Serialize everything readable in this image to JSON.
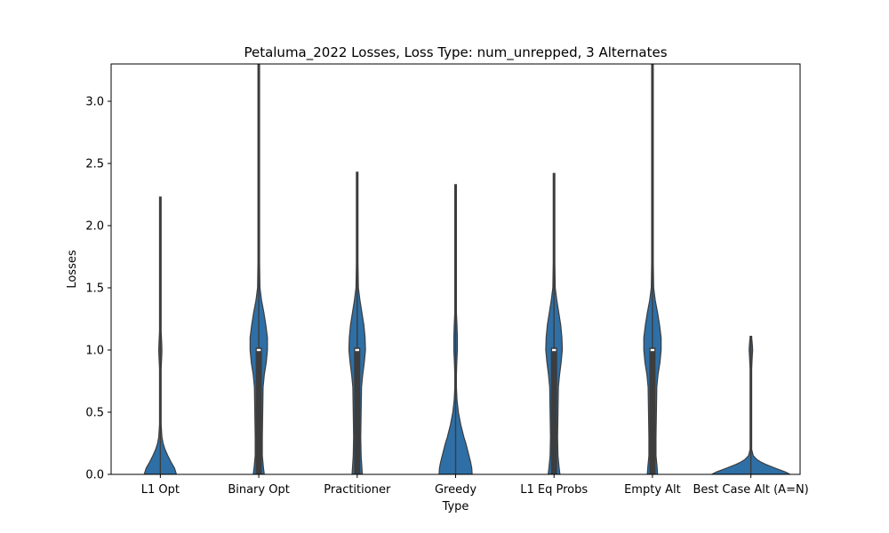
{
  "chart_data": {
    "type": "violin",
    "title": "Petaluma_2022 Losses, Loss Type: num_unrepped, 3 Alternates",
    "xlabel": "Type",
    "ylabel": "Losses",
    "ylim": [
      0,
      3.3
    ],
    "yticks": [
      "0.0",
      "0.5",
      "1.0",
      "1.5",
      "2.0",
      "2.5",
      "3.0"
    ],
    "grid": false,
    "legend": "none",
    "colors": {
      "fill": "#2e6fa6",
      "edge": "#3d3d3d",
      "inner": "#3d3d3d",
      "median": "#ffffff"
    },
    "categories": [
      "L1 Opt",
      "Binary Opt",
      "Practitioner",
      "Greedy",
      "L1 Eq Probs",
      "Empty Alt",
      "Best Case Alt (A=N)"
    ],
    "series": [
      {
        "category": "L1 Opt",
        "min": 0,
        "max": 2.23,
        "median": null,
        "profile": [
          [
            0,
            0.41
          ],
          [
            0.05,
            0.36
          ],
          [
            0.1,
            0.27
          ],
          [
            0.15,
            0.19
          ],
          [
            0.2,
            0.12
          ],
          [
            0.25,
            0.07
          ],
          [
            0.3,
            0.04
          ],
          [
            0.4,
            0.015
          ],
          [
            0.5,
            0.008
          ],
          [
            0.7,
            0.006
          ],
          [
            0.85,
            0.01
          ],
          [
            0.95,
            0.035
          ],
          [
            1.0,
            0.04
          ],
          [
            1.05,
            0.035
          ],
          [
            1.15,
            0.012
          ],
          [
            1.3,
            0.006
          ],
          [
            1.6,
            0.004
          ],
          [
            2.0,
            0.004
          ],
          [
            2.23,
            0.004
          ]
        ]
      },
      {
        "category": "Binary Opt",
        "min": 0,
        "max": 3.3,
        "median": 1.0,
        "profile": [
          [
            0,
            0.14
          ],
          [
            0.05,
            0.12
          ],
          [
            0.15,
            0.09
          ],
          [
            0.3,
            0.09
          ],
          [
            0.5,
            0.1
          ],
          [
            0.7,
            0.11
          ],
          [
            0.8,
            0.14
          ],
          [
            0.9,
            0.19
          ],
          [
            1.0,
            0.22
          ],
          [
            1.1,
            0.22
          ],
          [
            1.2,
            0.18
          ],
          [
            1.3,
            0.13
          ],
          [
            1.4,
            0.07
          ],
          [
            1.5,
            0.03
          ],
          [
            1.7,
            0.015
          ],
          [
            2.0,
            0.008
          ],
          [
            2.5,
            0.006
          ],
          [
            3.3,
            0.006
          ]
        ]
      },
      {
        "category": "Practitioner",
        "min": 0,
        "max": 2.43,
        "median": 1.0,
        "profile": [
          [
            0,
            0.13
          ],
          [
            0.05,
            0.12
          ],
          [
            0.15,
            0.1
          ],
          [
            0.3,
            0.09
          ],
          [
            0.5,
            0.1
          ],
          [
            0.7,
            0.11
          ],
          [
            0.8,
            0.14
          ],
          [
            0.9,
            0.18
          ],
          [
            1.0,
            0.21
          ],
          [
            1.1,
            0.2
          ],
          [
            1.2,
            0.17
          ],
          [
            1.3,
            0.12
          ],
          [
            1.4,
            0.07
          ],
          [
            1.5,
            0.03
          ],
          [
            1.7,
            0.014
          ],
          [
            2.0,
            0.008
          ],
          [
            2.43,
            0.006
          ]
        ]
      },
      {
        "category": "Greedy",
        "min": 0,
        "max": 2.33,
        "median": null,
        "profile": [
          [
            0,
            0.42
          ],
          [
            0.05,
            0.41
          ],
          [
            0.1,
            0.38
          ],
          [
            0.15,
            0.34
          ],
          [
            0.2,
            0.3
          ],
          [
            0.25,
            0.26
          ],
          [
            0.3,
            0.21
          ],
          [
            0.4,
            0.13
          ],
          [
            0.5,
            0.07
          ],
          [
            0.6,
            0.035
          ],
          [
            0.7,
            0.02
          ],
          [
            0.8,
            0.02
          ],
          [
            0.9,
            0.03
          ],
          [
            1.0,
            0.045
          ],
          [
            1.1,
            0.045
          ],
          [
            1.2,
            0.035
          ],
          [
            1.3,
            0.02
          ],
          [
            1.4,
            0.01
          ],
          [
            1.6,
            0.006
          ],
          [
            2.0,
            0.005
          ],
          [
            2.33,
            0.005
          ]
        ]
      },
      {
        "category": "L1 Eq Probs",
        "min": 0,
        "max": 2.42,
        "median": 1.0,
        "profile": [
          [
            0,
            0.15
          ],
          [
            0.05,
            0.13
          ],
          [
            0.15,
            0.1
          ],
          [
            0.3,
            0.09
          ],
          [
            0.5,
            0.1
          ],
          [
            0.7,
            0.11
          ],
          [
            0.8,
            0.14
          ],
          [
            0.9,
            0.18
          ],
          [
            1.0,
            0.21
          ],
          [
            1.1,
            0.2
          ],
          [
            1.2,
            0.17
          ],
          [
            1.3,
            0.12
          ],
          [
            1.4,
            0.07
          ],
          [
            1.5,
            0.03
          ],
          [
            1.7,
            0.014
          ],
          [
            2.0,
            0.008
          ],
          [
            2.42,
            0.006
          ]
        ]
      },
      {
        "category": "Empty Alt",
        "min": 0,
        "max": 3.3,
        "median": 1.0,
        "profile": [
          [
            0,
            0.13
          ],
          [
            0.05,
            0.12
          ],
          [
            0.15,
            0.09
          ],
          [
            0.3,
            0.09
          ],
          [
            0.5,
            0.1
          ],
          [
            0.7,
            0.11
          ],
          [
            0.8,
            0.14
          ],
          [
            0.9,
            0.19
          ],
          [
            1.0,
            0.22
          ],
          [
            1.1,
            0.22
          ],
          [
            1.2,
            0.18
          ],
          [
            1.3,
            0.13
          ],
          [
            1.4,
            0.07
          ],
          [
            1.5,
            0.03
          ],
          [
            1.7,
            0.015
          ],
          [
            2.0,
            0.008
          ],
          [
            2.5,
            0.006
          ],
          [
            3.3,
            0.006
          ]
        ]
      },
      {
        "category": "Best Case Alt (A=N)",
        "min": 0,
        "max": 1.11,
        "median": null,
        "profile": [
          [
            0,
            1.0
          ],
          [
            0.02,
            0.87
          ],
          [
            0.05,
            0.62
          ],
          [
            0.08,
            0.38
          ],
          [
            0.1,
            0.25
          ],
          [
            0.12,
            0.15
          ],
          [
            0.15,
            0.06
          ],
          [
            0.2,
            0.02
          ],
          [
            0.3,
            0.01
          ],
          [
            0.6,
            0.008
          ],
          [
            0.85,
            0.01
          ],
          [
            0.95,
            0.035
          ],
          [
            1.0,
            0.045
          ],
          [
            1.05,
            0.035
          ],
          [
            1.1,
            0.015
          ],
          [
            1.11,
            0.008
          ]
        ]
      }
    ]
  }
}
